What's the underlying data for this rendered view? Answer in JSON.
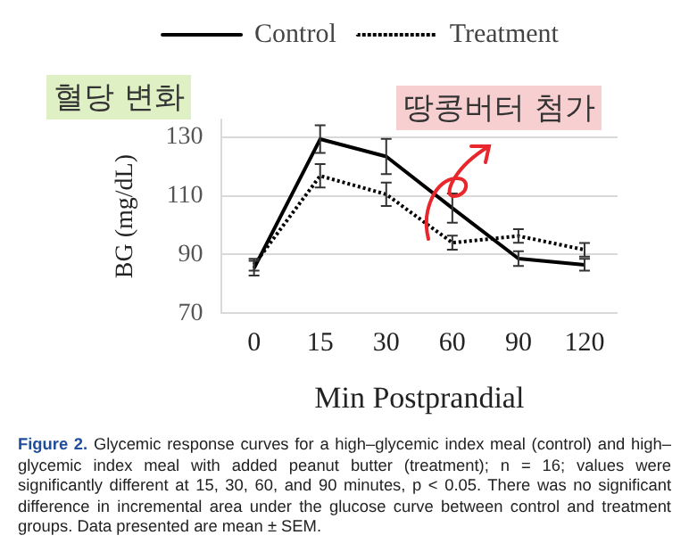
{
  "chart_data": {
    "type": "line",
    "categories": [
      "0",
      "15",
      "30",
      "60",
      "90",
      "120"
    ],
    "series": [
      {
        "name": "Control",
        "color": "#000000",
        "line_style": "solid",
        "values": [
          85.3,
          129.3,
          123.4,
          105.8,
          88.6,
          86.5
        ],
        "errors": [
          2.5,
          4.7,
          6,
          5,
          2.5,
          2
        ]
      },
      {
        "name": "Treatment",
        "color": "#000000",
        "line_style": "dotted",
        "values": [
          86.5,
          116.8,
          110.5,
          94,
          96.3,
          91.6
        ],
        "errors": [
          2,
          4,
          4,
          2.4,
          2.3,
          2.3
        ]
      }
    ],
    "xlabel": "Min Postprandial",
    "ylabel": "BG (mg/dL)",
    "ylim": [
      70,
      136
    ],
    "yticks": [
      70,
      90,
      110,
      130
    ],
    "grid": "y",
    "legend": "top",
    "annotations": [
      "혈당 변화",
      "땅콩버터 첨가",
      "Figure 2. Glycemic response curves for a high–glycemic index meal (control) and high–glycemic index meal with added peanut butter (treatment); n = 16; values were significantly different at 15, 30, 60, and 90 minutes, p < 0.05. There was no significant difference in incremental area under the glucose curve between control and treatment groups. Data presented are mean ± SEM."
    ]
  }
}
